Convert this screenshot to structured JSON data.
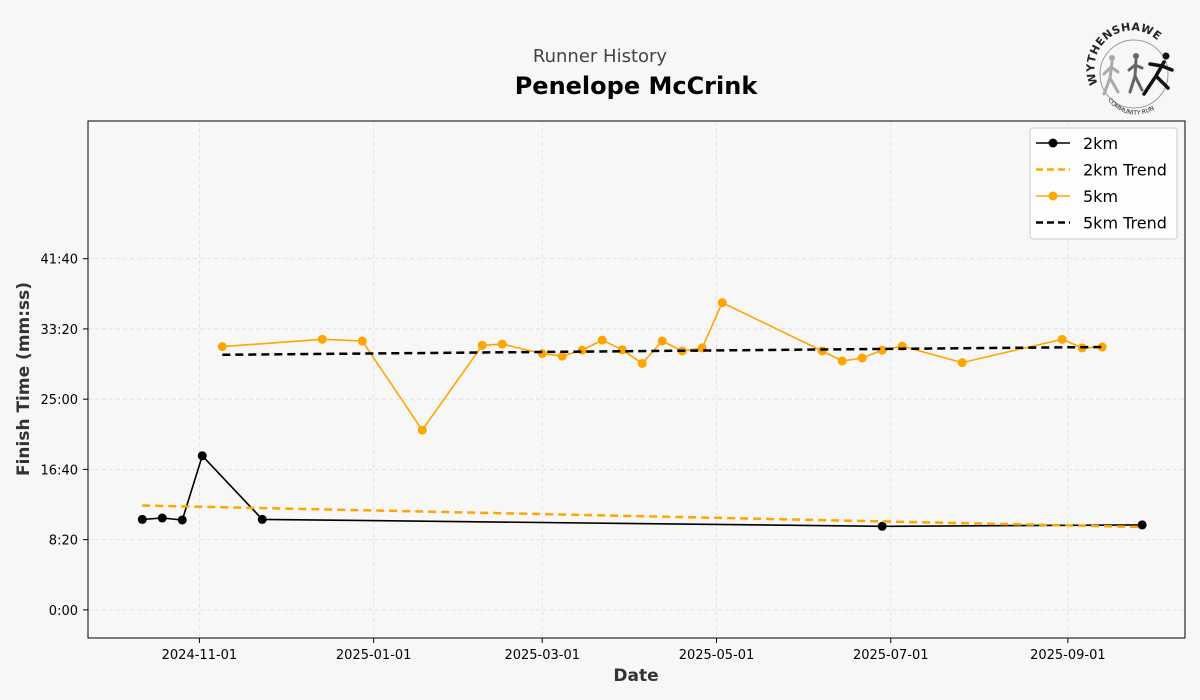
{
  "header": {
    "subtitle": "Runner History",
    "title": "Penelope McCrink"
  },
  "logo": {
    "text": "WYTHENSHAWE",
    "subtext": "COMMUNITY RUN"
  },
  "colors": {
    "series_2km": "#000000",
    "series_5km": "#FFA500",
    "grid": "#dddddd",
    "background": "#f7f7f7"
  },
  "chart_data": {
    "type": "line",
    "xlabel": "Date",
    "ylabel": "Finish Time (mm:ss)",
    "x_range": [
      "2024-09-23",
      "2025-10-12"
    ],
    "y_range_seconds": [
      -200,
      3480
    ],
    "x_ticks": [
      {
        "date": "2024-11-01",
        "label": "2024-11-01"
      },
      {
        "date": "2025-01-01",
        "label": "2025-01-01"
      },
      {
        "date": "2025-03-01",
        "label": "2025-03-01"
      },
      {
        "date": "2025-05-01",
        "label": "2025-05-01"
      },
      {
        "date": "2025-07-01",
        "label": "2025-07-01"
      },
      {
        "date": "2025-09-01",
        "label": "2025-09-01"
      }
    ],
    "y_ticks": [
      {
        "seconds": 0,
        "label": "0:00"
      },
      {
        "seconds": 500,
        "label": "8:20"
      },
      {
        "seconds": 1000,
        "label": "16:40"
      },
      {
        "seconds": 1500,
        "label": "25:00"
      },
      {
        "seconds": 2000,
        "label": "33:20"
      },
      {
        "seconds": 2500,
        "label": "41:40"
      }
    ],
    "grid": true,
    "legend_position": "top-right",
    "series": [
      {
        "name": "2km",
        "kind": "line-markers",
        "color": "#000000",
        "points": [
          {
            "x": "2024-10-12",
            "y": 644
          },
          {
            "x": "2024-10-19",
            "y": 654
          },
          {
            "x": "2024-10-26",
            "y": 640
          },
          {
            "x": "2024-11-02",
            "y": 1097
          },
          {
            "x": "2024-11-23",
            "y": 644
          },
          {
            "x": "2025-06-28",
            "y": 595
          },
          {
            "x": "2025-09-27",
            "y": 605
          }
        ]
      },
      {
        "name": "2km Trend",
        "kind": "dashed",
        "color": "#FFA500",
        "points": [
          {
            "x": "2024-10-12",
            "y": 743
          },
          {
            "x": "2025-09-27",
            "y": 590
          }
        ]
      },
      {
        "name": "5km",
        "kind": "line-markers",
        "color": "#FFA500",
        "points": [
          {
            "x": "2024-11-09",
            "y": 1874
          },
          {
            "x": "2024-12-14",
            "y": 1926
          },
          {
            "x": "2024-12-28",
            "y": 1914
          },
          {
            "x": "2025-01-18",
            "y": 1280
          },
          {
            "x": "2025-02-08",
            "y": 1883
          },
          {
            "x": "2025-02-15",
            "y": 1892
          },
          {
            "x": "2025-03-01",
            "y": 1824
          },
          {
            "x": "2025-03-08",
            "y": 1806
          },
          {
            "x": "2025-03-15",
            "y": 1849
          },
          {
            "x": "2025-03-22",
            "y": 1920
          },
          {
            "x": "2025-03-29",
            "y": 1852
          },
          {
            "x": "2025-04-05",
            "y": 1754
          },
          {
            "x": "2025-04-12",
            "y": 1914
          },
          {
            "x": "2025-04-19",
            "y": 1843
          },
          {
            "x": "2025-04-26",
            "y": 1865
          },
          {
            "x": "2025-05-03",
            "y": 2187
          },
          {
            "x": "2025-06-07",
            "y": 1843
          },
          {
            "x": "2025-06-14",
            "y": 1772
          },
          {
            "x": "2025-06-21",
            "y": 1793
          },
          {
            "x": "2025-06-28",
            "y": 1849
          },
          {
            "x": "2025-07-05",
            "y": 1877
          },
          {
            "x": "2025-07-26",
            "y": 1760
          },
          {
            "x": "2025-08-30",
            "y": 1926
          },
          {
            "x": "2025-09-06",
            "y": 1865
          },
          {
            "x": "2025-09-13",
            "y": 1871
          }
        ]
      },
      {
        "name": "5km Trend",
        "kind": "dashed",
        "color": "#000000",
        "points": [
          {
            "x": "2024-11-09",
            "y": 1816
          },
          {
            "x": "2025-09-13",
            "y": 1871
          }
        ]
      }
    ]
  }
}
